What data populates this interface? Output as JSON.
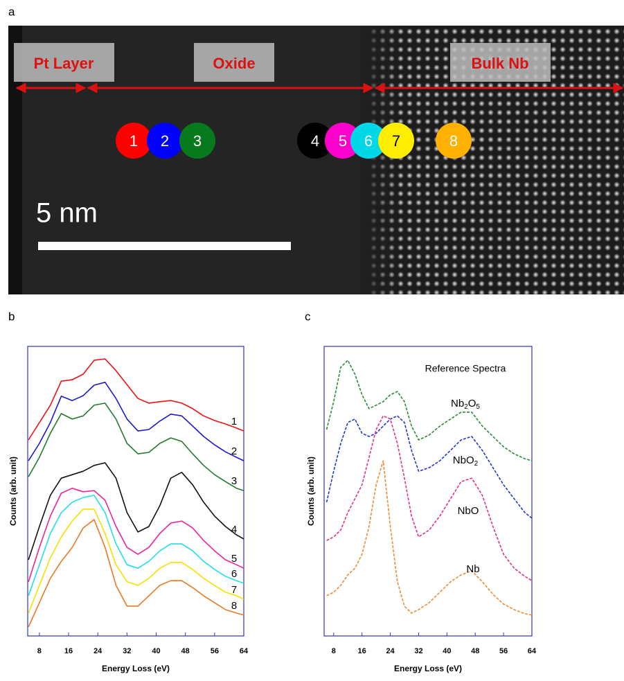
{
  "panel_a": {
    "label": "a",
    "regions": [
      "Pt Layer",
      "Oxide",
      "Bulk Nb"
    ],
    "points": [
      {
        "label": "1",
        "color": "#ff0000",
        "text_color": "#ffffff"
      },
      {
        "label": "2",
        "color": "#0000ff",
        "text_color": "#ffffff"
      },
      {
        "label": "3",
        "color": "#087a1e",
        "text_color": "#ffffff"
      },
      {
        "label": "4",
        "color": "#000000",
        "text_color": "#ffffff"
      },
      {
        "label": "5",
        "color": "#ff00cc",
        "text_color": "#ffffff"
      },
      {
        "label": "6",
        "color": "#00d8e8",
        "text_color": "#ffffff"
      },
      {
        "label": "7",
        "color": "#ffee00",
        "text_color": "#000000"
      },
      {
        "label": "8",
        "color": "#ffb000",
        "text_color": "#ffffff"
      }
    ],
    "scale_bar": "5 nm"
  },
  "chart_data": [
    {
      "type": "line",
      "panel_label": "b",
      "xlabel": "Energy Loss (eV)",
      "ylabel": "Counts (arb. unit)",
      "xlim": [
        4.8,
        64
      ],
      "xticks": [
        8,
        16,
        24,
        32,
        40,
        48,
        56,
        64
      ],
      "ylim": [
        0,
        100
      ],
      "line_style": "solid",
      "x": [
        5,
        8,
        11,
        14,
        17,
        20,
        23,
        26,
        29,
        32,
        35,
        38,
        41,
        44,
        47,
        50,
        53,
        56,
        59,
        62,
        64
      ],
      "series": [
        {
          "name": "1",
          "color": "#ee1111",
          "values": [
            67.7,
            73.7,
            79.7,
            88,
            88.5,
            90.4,
            95.2,
            95.7,
            91.6,
            86.8,
            82,
            80.4,
            80.9,
            81.3,
            80.4,
            78.5,
            76,
            74.4,
            73.2,
            71.8,
            70.8
          ]
        },
        {
          "name": "2",
          "color": "#1a1acc",
          "values": [
            60.5,
            66.5,
            73.7,
            82.8,
            81.3,
            83,
            86.6,
            87.6,
            82,
            74.9,
            70.8,
            71.3,
            74.2,
            76.6,
            76,
            72.5,
            68.9,
            66,
            63.6,
            61.7,
            60.5
          ]
        },
        {
          "name": "3",
          "color": "#207a2a",
          "values": [
            55,
            61.7,
            70,
            76.8,
            74.9,
            76,
            79.7,
            80.4,
            74.9,
            66.5,
            62.9,
            63.4,
            66.5,
            68.4,
            67.2,
            62.9,
            58.9,
            55.7,
            53.3,
            51,
            50.2
          ]
        },
        {
          "name": "4",
          "color": "#111111",
          "values": [
            26.3,
            37.8,
            48.6,
            54.5,
            55.7,
            56.9,
            58.9,
            59.8,
            54.5,
            42.6,
            35.9,
            37.8,
            45,
            54.5,
            56.5,
            52.2,
            46.2,
            41.4,
            37.8,
            34.9,
            33.5
          ]
        },
        {
          "name": "5",
          "color": "#ee2299",
          "values": [
            18.7,
            30.6,
            41.4,
            49.3,
            51,
            49.8,
            50.2,
            46.9,
            37.8,
            30.6,
            28.2,
            30.6,
            35.4,
            39,
            39.7,
            37.3,
            33,
            29.4,
            26.3,
            24.6,
            23.4
          ]
        },
        {
          "name": "6",
          "color": "#22ddee",
          "values": [
            13.9,
            24.6,
            35.4,
            42.6,
            46.2,
            47.8,
            48.6,
            42.6,
            31.8,
            24.6,
            23.4,
            25.8,
            29.4,
            31.8,
            31.8,
            29.4,
            25.8,
            23,
            20.6,
            19.1,
            18.2
          ]
        },
        {
          "name": "7",
          "color": "#f5e000",
          "values": [
            7.9,
            17.5,
            27,
            34.2,
            39.7,
            43.8,
            43.8,
            35.4,
            24.6,
            18.7,
            17.5,
            19.9,
            23.4,
            25.4,
            25.4,
            23,
            19.9,
            17.5,
            15.1,
            13.9,
            12.7
          ]
        },
        {
          "name": "8",
          "color": "#ee7722",
          "values": [
            3.1,
            11.5,
            19.9,
            25.8,
            30.6,
            37.3,
            40.2,
            30.6,
            17.5,
            10.3,
            10.3,
            13.9,
            17.5,
            19.1,
            19.1,
            16.7,
            13.9,
            11.5,
            9.1,
            7.9,
            7.2
          ]
        }
      ]
    },
    {
      "type": "line",
      "panel_label": "c",
      "xlabel": "Energy Loss (eV)",
      "ylabel": "Counts (arb. unit)",
      "annotation": "Reference Spectra",
      "xlim": [
        5.3,
        64
      ],
      "xticks": [
        8,
        16,
        24,
        32,
        40,
        48,
        56,
        64
      ],
      "ylim": [
        0,
        100
      ],
      "line_style": "dashed",
      "x": [
        6,
        8,
        10,
        12,
        14,
        16,
        18,
        20,
        22,
        24,
        26,
        28,
        30,
        32,
        35,
        38,
        41,
        44,
        47,
        50,
        53,
        56,
        59,
        62,
        64
      ],
      "series": [
        {
          "name": "Nb2O5",
          "color": "#2a8a3a",
          "values": [
            71.3,
            80.9,
            92.8,
            95.2,
            90.4,
            83.3,
            78.5,
            79.7,
            80.9,
            83.3,
            84.4,
            80.9,
            72.5,
            67.7,
            69.4,
            72.5,
            74.9,
            77.3,
            77.3,
            72.5,
            68.9,
            65.3,
            62.9,
            61.2,
            60.5
          ]
        },
        {
          "name": "NbO2",
          "color": "#2233cc",
          "values": [
            46.2,
            56.9,
            66.5,
            73.7,
            74.9,
            70,
            68.9,
            70,
            72.5,
            74.9,
            76,
            73.7,
            64.1,
            56.9,
            58.1,
            60.5,
            64.1,
            67.7,
            68.9,
            64.1,
            58.1,
            52.2,
            47.4,
            42.6,
            40.7
          ]
        },
        {
          "name": "NbO",
          "color": "#e0308a",
          "values": [
            33,
            34.2,
            36.6,
            42.6,
            47.4,
            52.2,
            61.7,
            71.3,
            76,
            74.9,
            66.5,
            54.5,
            41.4,
            34.2,
            36.6,
            41.4,
            47.4,
            53.3,
            54.5,
            48.6,
            37.8,
            28.2,
            23.4,
            20.6,
            19.1
          ]
        },
        {
          "name": "Nb",
          "color": "#f08a30",
          "values": [
            13.9,
            15.1,
            17.5,
            21.1,
            23.4,
            28.2,
            37.8,
            52.2,
            60.5,
            37.8,
            18.7,
            10.3,
            7.9,
            9.1,
            11.5,
            15.1,
            18.7,
            21.1,
            22.5,
            18.7,
            14.4,
            11,
            9.1,
            7.7,
            7.2
          ]
        }
      ]
    }
  ]
}
